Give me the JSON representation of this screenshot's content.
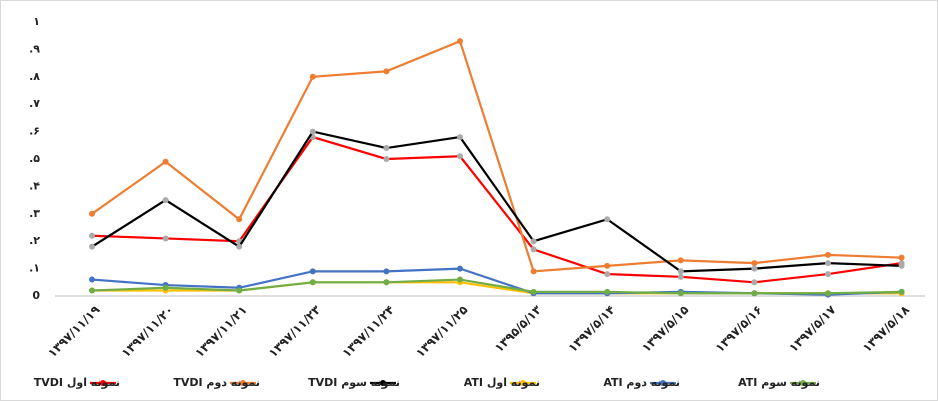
{
  "chart_data": {
    "type": "line",
    "categories": [
      "۱۳۹۷/۱۱/۱۹",
      "۱۳۹۷/۱۱/۲۰",
      "۱۳۹۷/۱۱/۲۱",
      "۱۳۹۷/۱۱/۲۳",
      "۱۳۹۷/۱۱/۲۴",
      "۱۳۹۷/۱۱/۲۵",
      "۱۳۹۵/۵/۱۳",
      "۱۳۹۷/۵/۱۴",
      "۱۳۹۷/۵/۱۵",
      "۱۳۹۷/۵/۱۶",
      "۱۳۹۷/۵/۱۷",
      "۱۳۹۷/۵/۱۸"
    ],
    "series": [
      {
        "name": "نمونه اول TVDI",
        "color": "#ff0000",
        "values": [
          0.22,
          0.21,
          0.2,
          0.58,
          0.5,
          0.51,
          0.17,
          0.08,
          0.07,
          0.05,
          0.08,
          0.12
        ]
      },
      {
        "name": "نمونه دوم TVDI",
        "color": "#ed7d31",
        "values": [
          0.3,
          0.49,
          0.28,
          0.8,
          0.82,
          0.93,
          0.09,
          0.11,
          0.13,
          0.12,
          0.15,
          0.14
        ]
      },
      {
        "name": "نمونه سوم TVDI",
        "color": "#000000",
        "values": [
          0.18,
          0.35,
          0.18,
          0.6,
          0.54,
          0.58,
          0.2,
          0.28,
          0.09,
          0.1,
          0.12,
          0.11
        ]
      },
      {
        "name": "نمونه اول ATI",
        "color": "#ffc000",
        "values": [
          0.02,
          0.02,
          0.02,
          0.05,
          0.05,
          0.05,
          0.01,
          0.01,
          0.01,
          0.01,
          0.01,
          0.01
        ]
      },
      {
        "name": "نمونه دوم ATI",
        "color": "#4472c4",
        "values": [
          0.06,
          0.04,
          0.03,
          0.09,
          0.09,
          0.1,
          0.01,
          0.01,
          0.015,
          0.01,
          0.005,
          0.015
        ]
      },
      {
        "name": "نمونه سوم ATI",
        "color": "#70ad47",
        "values": [
          0.02,
          0.03,
          0.02,
          0.05,
          0.05,
          0.06,
          0.015,
          0.015,
          0.01,
          0.01,
          0.01,
          0.015
        ]
      }
    ],
    "ylim": [
      0,
      1
    ],
    "yticks": [
      0,
      {
        "value": 0.1,
        "label": ".۱"
      },
      {
        "value": 0.2,
        "label": ".۲"
      },
      {
        "value": 0.3,
        "label": ".۳"
      },
      {
        "value": 0.4,
        "label": ".۴"
      },
      {
        "value": 0.5,
        "label": ".۵"
      },
      {
        "value": 0.6,
        "label": ".۶"
      },
      {
        "value": 0.7,
        "label": ".۷"
      },
      {
        "value": 0.8,
        "label": ".۸"
      },
      {
        "value": 0.9,
        "label": ".۹"
      },
      {
        "value": 1,
        "label": "۱"
      }
    ],
    "grid": false,
    "legend": "bottom"
  }
}
